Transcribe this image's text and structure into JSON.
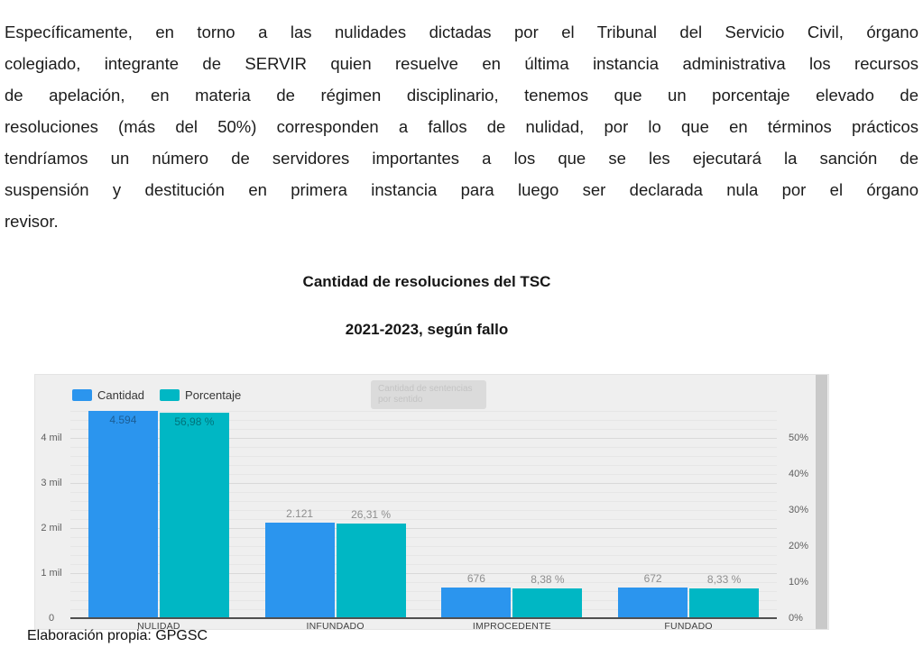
{
  "page": {
    "paragraph_lines": [
      "Específicamente, en torno a las nulidades dictadas por el Tribunal del Servicio Civil, órgano",
      "colegiado, integrante de SERVIR quien resuelve en última instancia administrativa los recursos",
      "de apelación, en materia de régimen disciplinario, tenemos que un porcentaje elevado de",
      "resoluciones (más del 50%) corresponden a fallos de nulidad, por lo que en términos prácticos",
      "tendríamos un número de servidores importantes a los que se les ejecutará la sanción de",
      "suspensión y destitución en primera instancia para luego ser declarada nula por el órgano",
      "revisor."
    ],
    "chart_title": "Cantidad de resoluciones del TSC",
    "chart_subtitle": "2021-2023, según fallo",
    "source_caption": "Elaboración propia: GPGSC"
  },
  "chart_widget": {
    "tooltip_text": "Cantidad de sentencias por sentido",
    "colors": {
      "widget_bg": "#efefef",
      "bar_blue": "#2b95ee",
      "bar_teal": "#00b7c4",
      "grid_major": "#d9d9d9",
      "grid_minor": "#e6e6e6",
      "axis_line": "#505050",
      "value_label_outside": "#8e8e8e",
      "value_label_inside": "rgba(0,0,0,0.38)",
      "scrollbar_thumb": "#c9c9c9"
    }
  },
  "chart_data": {
    "type": "bar",
    "title": "Cantidad de resoluciones del TSC",
    "subtitle": "2021-2023, según fallo",
    "internal_title": "Cantidad de sentencias por sentido",
    "categories": [
      "NULIDAD",
      "INFUNDADO",
      "IMPROCEDENTE",
      "FUNDADO"
    ],
    "series": [
      {
        "name": "Cantidad",
        "axis": "left",
        "color": "#2b95ee",
        "values": [
          4594,
          2121,
          676,
          672
        ],
        "labels": [
          "4.594",
          "2.121",
          "676",
          "672"
        ]
      },
      {
        "name": "Porcentaje",
        "axis": "right",
        "color": "#00b7c4",
        "values": [
          56.98,
          26.31,
          8.38,
          8.33
        ],
        "labels": [
          "56,98 %",
          "26,31 %",
          "8,38 %",
          "8,33 %"
        ]
      }
    ],
    "left_axis": {
      "ticks": [
        "0",
        "1 mil",
        "2 mil",
        "3 mil",
        "4 mil"
      ],
      "values": [
        0,
        1000,
        2000,
        3000,
        4000
      ],
      "max": 4740
    },
    "right_axis": {
      "ticks": [
        "0%",
        "10%",
        "20%",
        "30%",
        "40%",
        "50%"
      ],
      "values": [
        0,
        10,
        20,
        30,
        40,
        50
      ],
      "max": 59.25
    },
    "grid": true,
    "legend_position": "top-left"
  }
}
